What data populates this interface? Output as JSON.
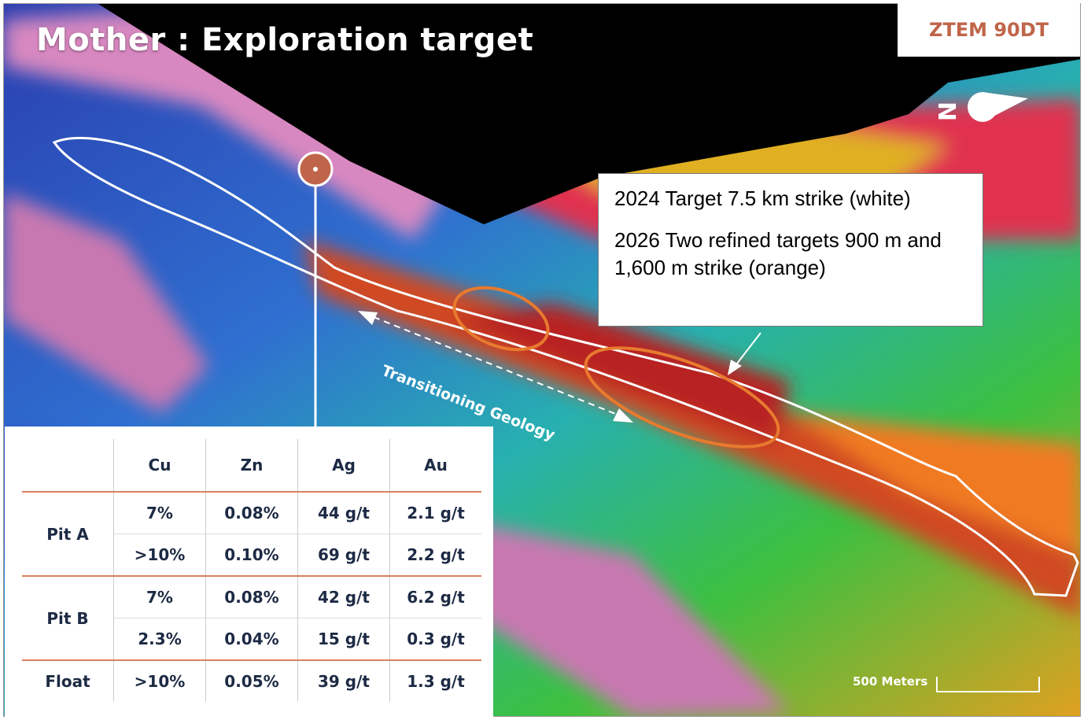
{
  "title": "Mother : Exploration target",
  "badge": "ZTEM 90DT",
  "north_label": "N",
  "legend": {
    "line1": "2024 Target 7.5 km strike (white)",
    "line2": "2026 Two refined targets 900 m and 1,600 m strike (orange)"
  },
  "annotation": "Transitioning Geology",
  "scale": "500 Meters",
  "colors": {
    "accent": "#c0654a",
    "target_white": "#ffffff",
    "target_orange": "#e87a2e",
    "table_text": "#1d2a44"
  },
  "table": {
    "headers": [
      "",
      "Cu",
      "Zn",
      "Ag",
      "Au"
    ],
    "groups": [
      {
        "name": "Pit A",
        "rows": [
          [
            "7%",
            "0.08%",
            "44 g/t",
            "2.1 g/t"
          ],
          [
            ">10%",
            "0.10%",
            "69 g/t",
            "2.2 g/t"
          ]
        ]
      },
      {
        "name": "Pit B",
        "rows": [
          [
            "7%",
            "0.08%",
            "42 g/t",
            "6.2 g/t"
          ],
          [
            "2.3%",
            "0.04%",
            "15 g/t",
            "0.3 g/t"
          ]
        ]
      },
      {
        "name": "Float",
        "rows": [
          [
            ">10%",
            "0.05%",
            "39 g/t",
            "1.3 g/t"
          ]
        ]
      }
    ]
  }
}
